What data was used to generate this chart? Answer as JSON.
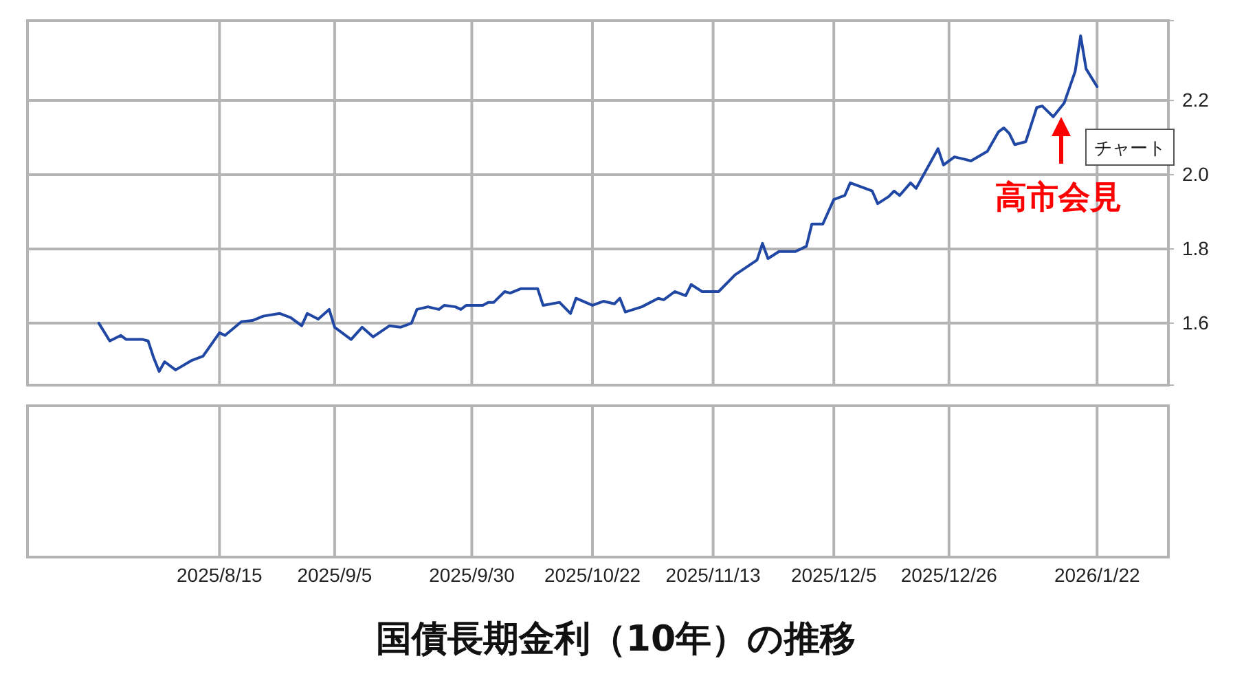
{
  "chart_data": {
    "type": "line",
    "title": "国債長期金利（10年）の推移",
    "x": [
      "2025-07-24",
      "2025-07-26",
      "2025-07-28",
      "2025-07-29",
      "2025-08-01",
      "2025-08-02",
      "2025-08-03",
      "2025-08-04",
      "2025-08-05",
      "2025-08-07",
      "2025-08-10",
      "2025-08-12",
      "2025-08-15",
      "2025-08-16",
      "2025-08-19",
      "2025-08-21",
      "2025-08-23",
      "2025-08-26",
      "2025-08-28",
      "2025-08-30",
      "2025-08-31",
      "2025-09-02",
      "2025-09-04",
      "2025-09-05",
      "2025-09-08",
      "2025-09-10",
      "2025-09-12",
      "2025-09-15",
      "2025-09-17",
      "2025-09-19",
      "2025-09-20",
      "2025-09-22",
      "2025-09-24",
      "2025-09-25",
      "2025-09-27",
      "2025-09-28",
      "2025-09-29",
      "2025-10-02",
      "2025-10-03",
      "2025-10-04",
      "2025-10-06",
      "2025-10-07",
      "2025-10-09",
      "2025-10-12",
      "2025-10-13",
      "2025-10-16",
      "2025-10-18",
      "2025-10-19",
      "2025-10-22",
      "2025-10-24",
      "2025-10-26",
      "2025-10-27",
      "2025-10-28",
      "2025-10-31",
      "2025-11-03",
      "2025-11-04",
      "2025-11-06",
      "2025-11-08",
      "2025-11-09",
      "2025-11-11",
      "2025-11-14",
      "2025-11-17",
      "2025-11-21",
      "2025-11-22",
      "2025-11-23",
      "2025-11-25",
      "2025-11-28",
      "2025-11-30",
      "2025-12-01",
      "2025-12-03",
      "2025-12-05",
      "2025-12-07",
      "2025-12-08",
      "2025-12-12",
      "2025-12-13",
      "2025-12-15",
      "2025-12-16",
      "2025-12-17",
      "2025-12-19",
      "2025-12-20",
      "2025-12-24",
      "2025-12-25",
      "2025-12-27",
      "2025-12-29",
      "2025-12-30",
      "2026-01-02",
      "2026-01-04",
      "2026-01-05",
      "2026-01-06",
      "2026-01-07",
      "2026-01-09",
      "2026-01-11",
      "2026-01-12",
      "2026-01-14",
      "2026-01-16",
      "2026-01-18",
      "2026-01-19",
      "2026-01-20",
      "2026-01-22"
    ],
    "series": [
      {
        "axis": "y2",
        "color": "#1f47a3",
        "values": [
          1.6,
          1.552,
          1.567,
          1.556,
          1.556,
          1.552,
          1.507,
          1.47,
          1.496,
          1.474,
          1.5,
          1.511,
          1.574,
          1.567,
          1.604,
          1.607,
          1.619,
          1.626,
          1.615,
          1.593,
          1.626,
          1.611,
          1.637,
          1.589,
          1.556,
          1.589,
          1.563,
          1.593,
          1.589,
          1.6,
          1.637,
          1.644,
          1.637,
          1.648,
          1.644,
          1.637,
          1.648,
          1.648,
          1.656,
          1.656,
          1.685,
          1.681,
          1.693,
          1.693,
          1.648,
          1.656,
          1.626,
          1.667,
          1.648,
          1.659,
          1.652,
          1.667,
          1.63,
          1.644,
          1.667,
          1.663,
          1.685,
          1.674,
          1.704,
          1.685,
          1.685,
          1.73,
          1.77,
          1.815,
          1.774,
          1.793,
          1.793,
          1.807,
          1.867,
          1.867,
          1.933,
          1.944,
          1.978,
          1.956,
          1.922,
          1.941,
          1.956,
          1.944,
          1.978,
          1.963,
          2.07,
          2.026,
          2.048,
          2.041,
          2.037,
          2.063,
          2.115,
          2.126,
          2.111,
          2.081,
          2.089,
          2.181,
          2.185,
          2.156,
          2.193,
          2.278,
          2.374,
          2.285,
          2.237
        ]
      }
    ],
    "xlim": [
      "2025-07-11",
      "2026-02-04"
    ],
    "xticks": [
      {
        "value": "2025-08-15",
        "label": "2025/8/15"
      },
      {
        "value": "2025-09-05",
        "label": "2025/9/5"
      },
      {
        "value": "2025-09-30",
        "label": "2025/9/30"
      },
      {
        "value": "2025-10-22",
        "label": "2025/10/22"
      },
      {
        "value": "2025-11-13",
        "label": "2025/11/13"
      },
      {
        "value": "2025-12-05",
        "label": "2025/12/5"
      },
      {
        "value": "2025-12-26",
        "label": "2025/12/26"
      },
      {
        "value": "2026-01-22",
        "label": "2026/1/22"
      }
    ],
    "y2lim": [
      1.433,
      2.415
    ],
    "y2ticks": [
      1.6,
      1.8,
      {
        "value": 2.0,
        "label": "2.0"
      },
      2.2
    ],
    "grid": true,
    "annotations": [
      "高市会見",
      "チャート"
    ]
  }
}
